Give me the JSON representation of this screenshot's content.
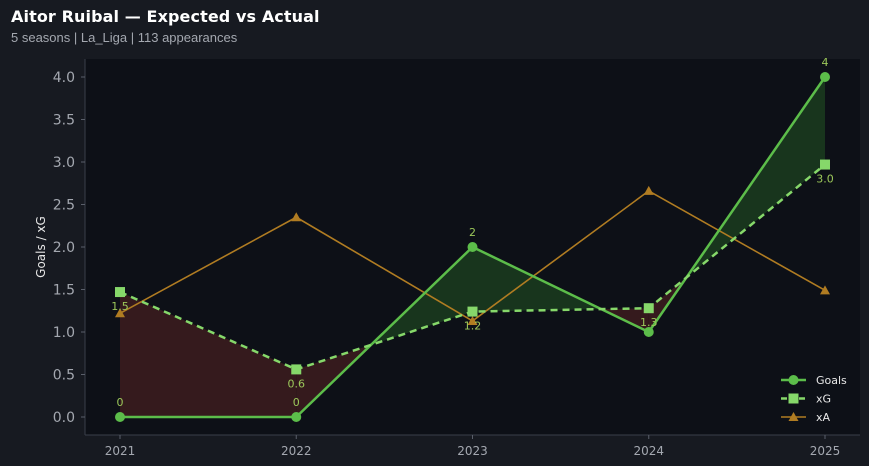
{
  "header": {
    "title": "Aitor Ruibal — Expected vs Actual",
    "subtitle": "5 seasons | La_Liga | 113 appearances"
  },
  "colors": {
    "background": "#171a21",
    "plot_background": "#0d1017",
    "goals": "#5cbd4a",
    "xg": "#86d86a",
    "xa": "#b07c22",
    "fill_over": "#1a3a1e",
    "fill_under": "#3a1c1e",
    "axis_text": "#a4a8b0",
    "label_text": "#9cc85a"
  },
  "chart_data": {
    "type": "line",
    "x": [
      "2021",
      "2022",
      "2023",
      "2024",
      "2025"
    ],
    "series": [
      {
        "name": "Goals",
        "marker": "circle",
        "style": "solid",
        "values": [
          0,
          0,
          2,
          1,
          4
        ],
        "labels": [
          "0",
          "0",
          "2",
          "",
          "4"
        ]
      },
      {
        "name": "xG",
        "marker": "square",
        "style": "dashed",
        "values": [
          1.47,
          0.56,
          1.24,
          1.28,
          2.97
        ],
        "labels": [
          "1.5",
          "0.6",
          "1.2",
          "1.3",
          "3.0"
        ]
      },
      {
        "name": "xA",
        "marker": "triangle",
        "style": "solid",
        "values": [
          1.22,
          2.35,
          1.13,
          2.66,
          1.49
        ]
      }
    ],
    "ylabel": "Goals / xG",
    "xlabel": "",
    "ylim": [
      -0.2,
      4.2
    ],
    "yticks": [
      "0.0",
      "0.5",
      "1.0",
      "1.5",
      "2.0",
      "2.5",
      "3.0",
      "3.5",
      "4.0"
    ],
    "grid": false,
    "legend": "bottom-right",
    "fill_between": [
      "Goals",
      "xG"
    ]
  }
}
